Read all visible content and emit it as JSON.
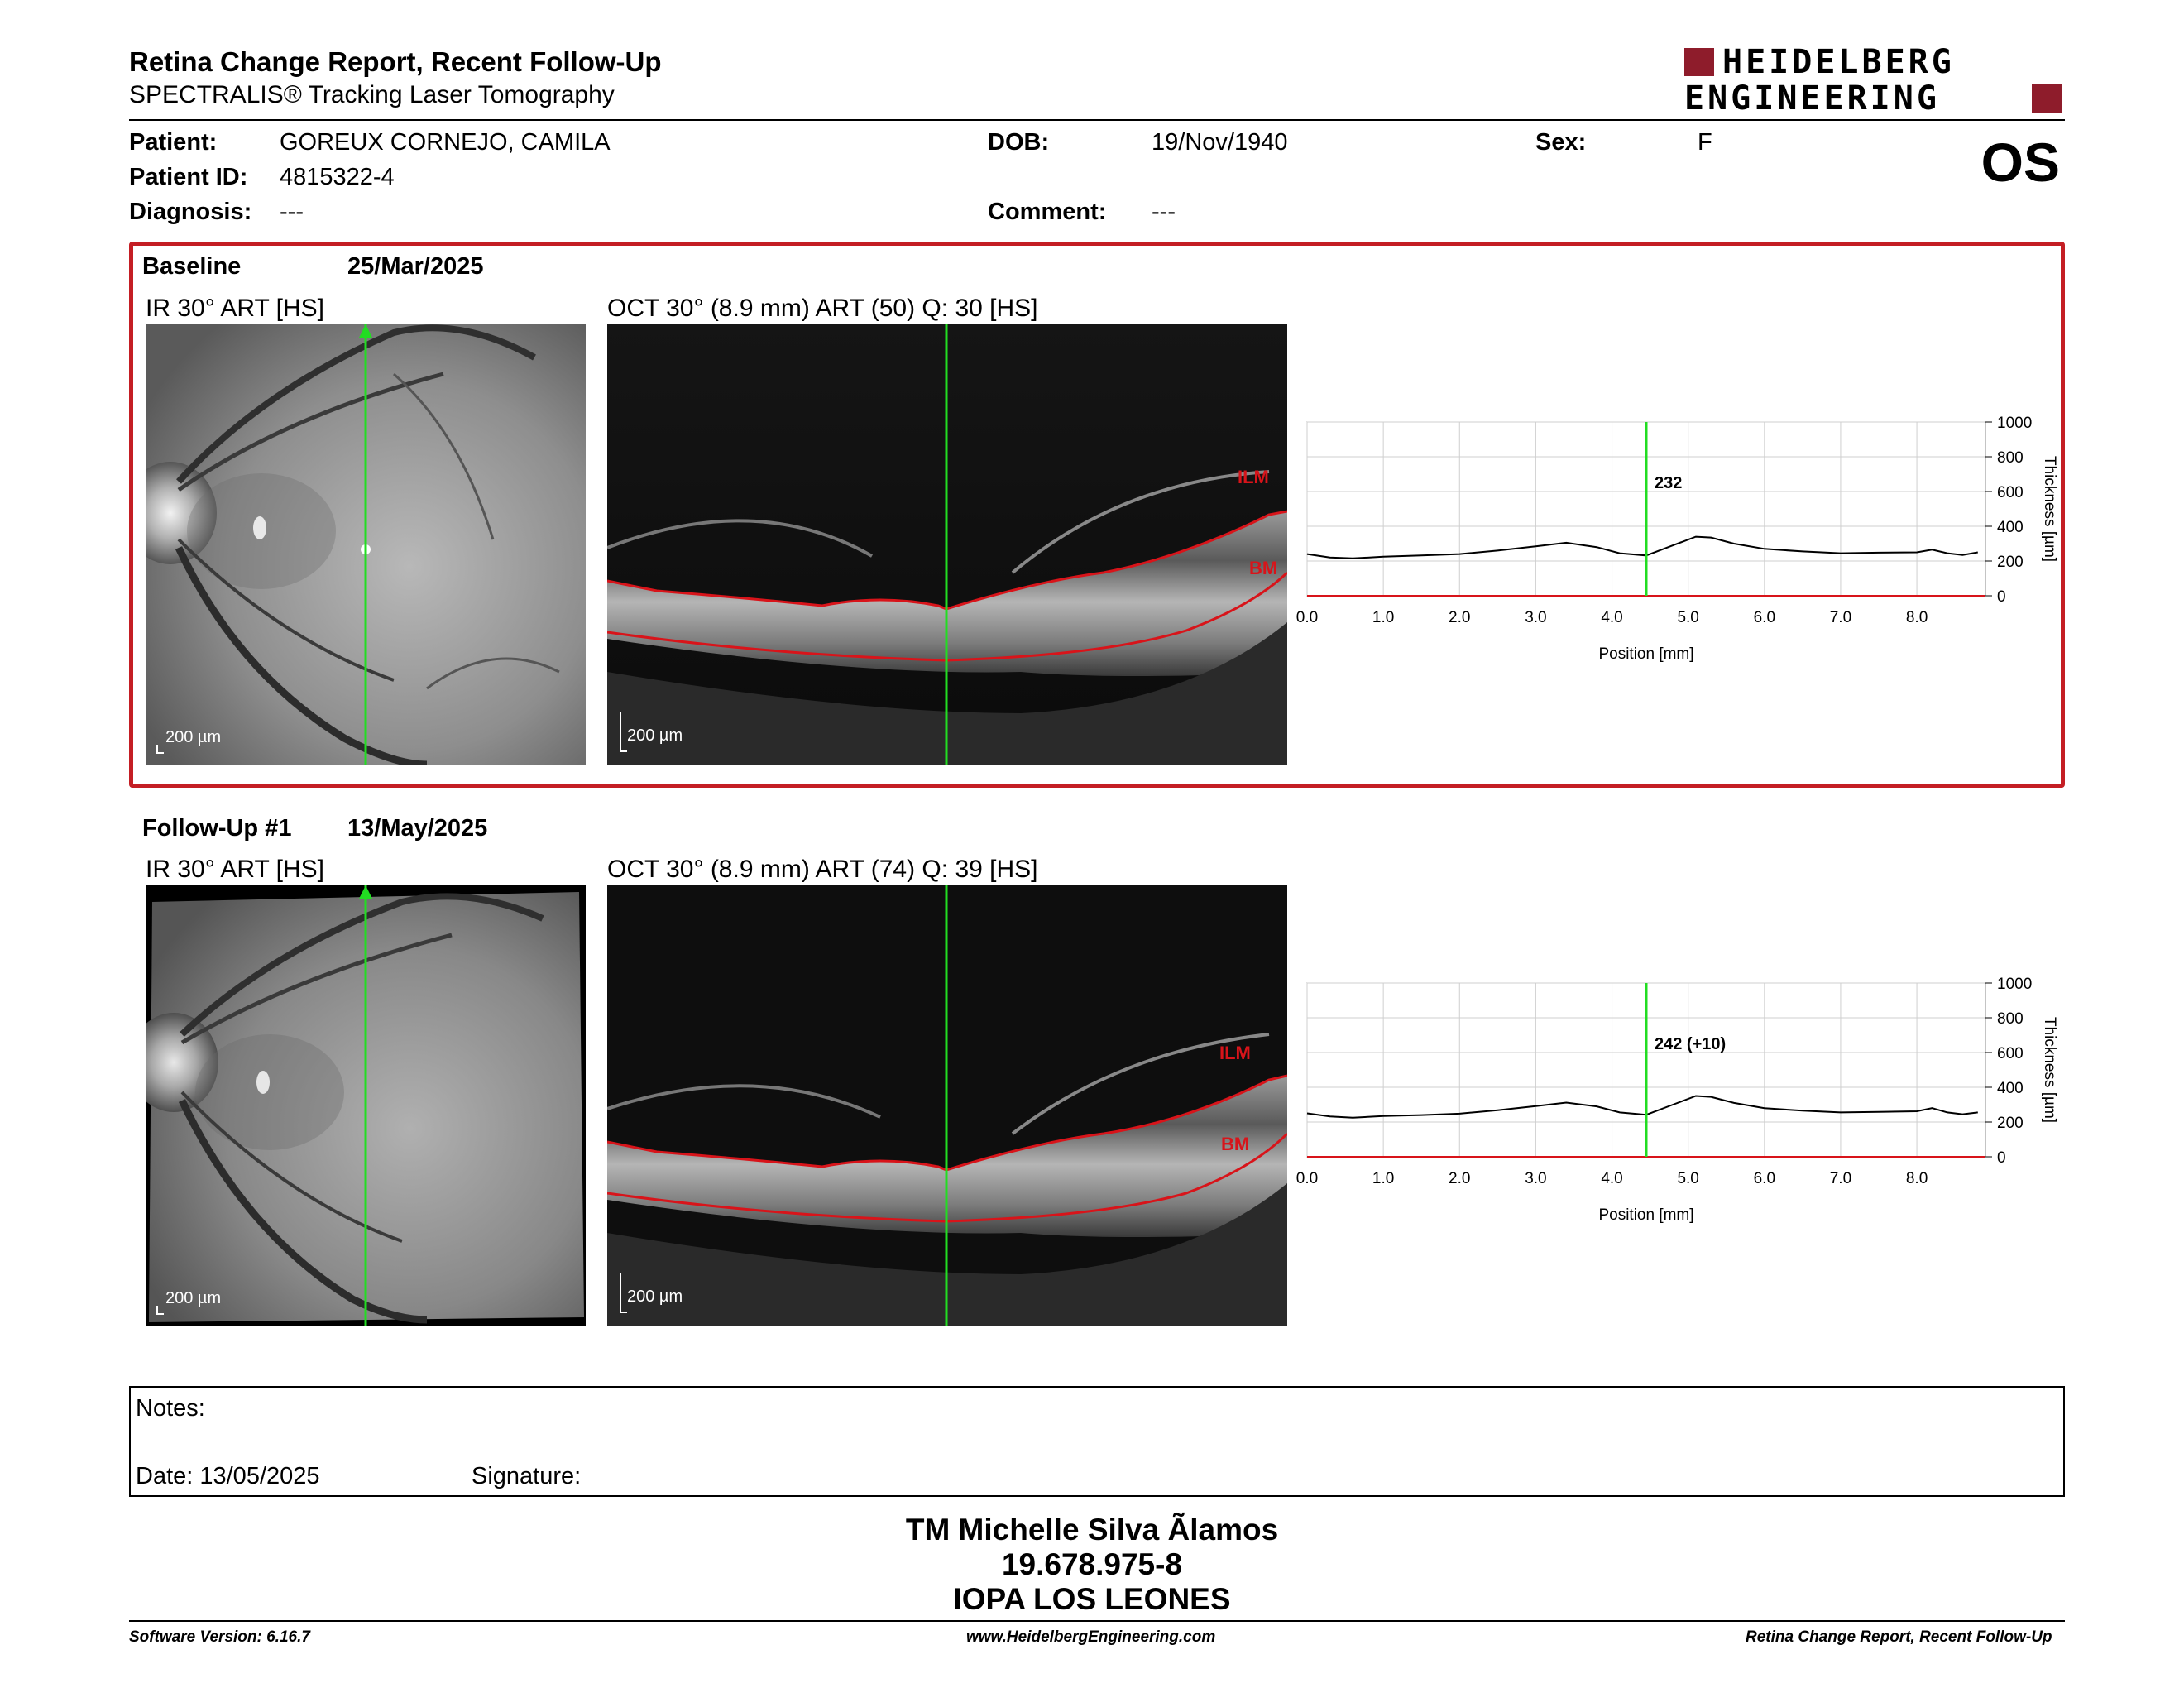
{
  "header": {
    "title": "Retina Change Report, Recent Follow-Up",
    "subtitle": "SPECTRALIS® Tracking Laser Tomography",
    "logo_line1": "HEIDELBERG",
    "logo_line2": "ENGINEERING"
  },
  "colors": {
    "brand": "#8e1c2b",
    "frame": "#c41e24",
    "scan_line": "#22dd22",
    "layer_line": "#d8141a"
  },
  "patient": {
    "patient_label": "Patient:",
    "patient_name": "GOREUX CORNEJO, CAMILA",
    "id_label": "Patient ID:",
    "patient_id": "4815322-4",
    "diagnosis_label": "Diagnosis:",
    "diagnosis": "---",
    "dob_label": "DOB:",
    "dob": "19/Nov/1940",
    "comment_label": "Comment:",
    "comment": "---",
    "sex_label": "Sex:",
    "sex": "F",
    "eye": "OS"
  },
  "baseline": {
    "label": "Baseline",
    "date": "25/Mar/2025",
    "ir_label": "IR 30° ART [HS]",
    "oct_label": "OCT 30° (8.9 mm) ART (50) Q: 30 [HS]",
    "ir_scale": "200 µm",
    "oct_scale": "200 µm",
    "ilm": "ILM",
    "bm": "BM"
  },
  "followup": {
    "label": "Follow-Up #1",
    "date": "13/May/2025",
    "ir_label": "IR 30° ART [HS]",
    "oct_label": "OCT 30° (8.9 mm) ART (74) Q: 39 [HS]",
    "ir_scale": "200 µm",
    "oct_scale": "200 µm",
    "ilm": "ILM",
    "bm": "BM"
  },
  "chart_data": [
    {
      "type": "line",
      "ylabel": "Thickness [µm]",
      "xlabel": "Position [mm]",
      "xlim": [
        0,
        8.9
      ],
      "ylim": [
        0,
        1000
      ],
      "x_ticks": [
        "0.0",
        "1.0",
        "2.0",
        "3.0",
        "4.0",
        "5.0",
        "6.0",
        "7.0",
        "8.0"
      ],
      "y_ticks": [
        "0",
        "200",
        "400",
        "600",
        "800",
        "1000"
      ],
      "cursor_x": 4.45,
      "cursor_label": "232",
      "x": [
        0.0,
        0.3,
        0.6,
        1.0,
        1.5,
        2.0,
        2.5,
        3.0,
        3.4,
        3.8,
        4.1,
        4.45,
        4.8,
        5.1,
        5.3,
        5.6,
        6.0,
        6.5,
        7.0,
        7.5,
        8.0,
        8.2,
        8.4,
        8.6,
        8.8
      ],
      "values": [
        240,
        220,
        215,
        225,
        232,
        240,
        260,
        285,
        305,
        280,
        245,
        232,
        290,
        340,
        335,
        300,
        270,
        255,
        245,
        248,
        250,
        265,
        245,
        235,
        250
      ]
    },
    {
      "type": "line",
      "ylabel": "Thickness [µm]",
      "xlabel": "Position [mm]",
      "xlim": [
        0,
        8.9
      ],
      "ylim": [
        0,
        1000
      ],
      "x_ticks": [
        "0.0",
        "1.0",
        "2.0",
        "3.0",
        "4.0",
        "5.0",
        "6.0",
        "7.0",
        "8.0"
      ],
      "y_ticks": [
        "0",
        "200",
        "400",
        "600",
        "800",
        "1000"
      ],
      "cursor_x": 4.45,
      "cursor_label": "242 (+10)",
      "x": [
        0.0,
        0.3,
        0.6,
        1.0,
        1.5,
        2.0,
        2.5,
        3.0,
        3.4,
        3.8,
        4.1,
        4.45,
        4.8,
        5.1,
        5.3,
        5.6,
        6.0,
        6.5,
        7.0,
        7.5,
        8.0,
        8.2,
        8.4,
        8.6,
        8.8
      ],
      "values": [
        250,
        232,
        225,
        235,
        240,
        248,
        268,
        292,
        312,
        290,
        255,
        242,
        300,
        350,
        345,
        310,
        280,
        265,
        255,
        258,
        262,
        280,
        255,
        245,
        255
      ]
    }
  ],
  "notes": {
    "notes_label": "Notes:",
    "date_label": "Date: 13/05/2025",
    "signature_label": "Signature:"
  },
  "operator": {
    "name": "TM Michelle Silva Ãlamos",
    "rut": "19.678.975-8",
    "clinic": "IOPA LOS LEONES"
  },
  "footer": {
    "version": "Software Version: 6.16.7",
    "website": "www.HeidelbergEngineering.com",
    "report": "Retina Change Report, Recent Follow-Up"
  }
}
